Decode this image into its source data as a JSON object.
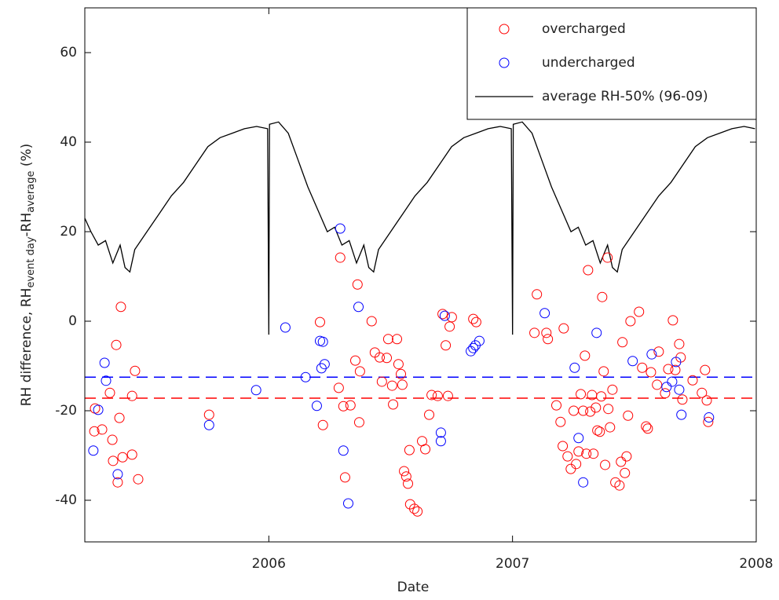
{
  "chart_data": {
    "type": "scatter",
    "x_label": "Date",
    "y_label": [
      "RH difference, RH",
      "event day",
      "-RH",
      "average",
      " (%)"
    ],
    "xlim": [
      2005.245,
      2008
    ],
    "xticks": [
      2006,
      2007,
      2008
    ],
    "ylim": [
      -49.3,
      70
    ],
    "yticks": [
      -40,
      -20,
      0,
      20,
      40,
      60
    ],
    "legend": "upper right",
    "series": [
      {
        "name": "overcharged",
        "color": "#ff0000",
        "style": "marker",
        "x": [
          2005.284,
          2005.287,
          2005.316,
          2005.348,
          2005.361,
          2005.358,
          2005.374,
          2005.38,
          2005.387,
          2005.393,
          2005.4,
          2005.439,
          2005.439,
          2005.451,
          2005.464,
          2005.755,
          2006.21,
          2006.222,
          2006.293,
          2006.287,
          2006.306,
          2006.313,
          2006.335,
          2006.355,
          2006.364,
          2006.371,
          2006.374,
          2006.422,
          2006.435,
          2006.455,
          2006.464,
          2006.484,
          2006.49,
          2006.506,
          2006.51,
          2006.526,
          2006.532,
          2006.542,
          2006.548,
          2006.555,
          2006.564,
          2006.571,
          2006.577,
          2006.58,
          2006.597,
          2006.61,
          2006.629,
          2006.642,
          2006.658,
          2006.668,
          2006.693,
          2006.713,
          2006.726,
          2006.735,
          2006.742,
          2006.751,
          2006.839,
          2006.851,
          2007.1,
          2007.09,
          2007.139,
          2007.145,
          2007.21,
          2007.18,
          2007.197,
          2007.206,
          2007.226,
          2007.239,
          2007.251,
          2007.261,
          2007.271,
          2007.28,
          2007.29,
          2007.297,
          2007.303,
          2007.31,
          2007.319,
          2007.326,
          2007.332,
          2007.342,
          2007.348,
          2007.358,
          2007.364,
          2007.368,
          2007.374,
          2007.38,
          2007.39,
          2007.393,
          2007.4,
          2007.41,
          2007.422,
          2007.439,
          2007.445,
          2007.451,
          2007.461,
          2007.468,
          2007.474,
          2007.484,
          2007.519,
          2007.532,
          2007.548,
          2007.555,
          2007.568,
          2007.593,
          2007.6,
          2007.626,
          2007.639,
          2007.658,
          2007.668,
          2007.684,
          2007.69,
          2007.697,
          2007.739,
          2007.777,
          2007.79,
          2007.797,
          2007.803
        ],
        "values": [
          -24.6,
          -19.5,
          -24.2,
          -16.0,
          -31.2,
          -26.5,
          -5.3,
          -36.0,
          -21.6,
          3.2,
          -30.4,
          -16.7,
          -29.8,
          -11.1,
          -35.3,
          -20.9,
          -0.2,
          -23.2,
          14.2,
          -14.9,
          -19.0,
          -34.9,
          -18.8,
          -8.8,
          8.2,
          -22.6,
          -11.2,
          0.0,
          -7.0,
          -8.1,
          -13.5,
          -8.2,
          -4.0,
          -14.4,
          -18.6,
          -4.0,
          -9.6,
          -11.8,
          -14.2,
          -33.5,
          -34.7,
          -36.3,
          -28.8,
          -40.9,
          -41.9,
          -42.5,
          -26.8,
          -28.6,
          -20.9,
          -16.5,
          -16.7,
          1.6,
          -5.4,
          -16.7,
          -1.2,
          0.9,
          0.5,
          -0.2,
          6.0,
          -2.6,
          -2.6,
          -4.0,
          -1.6,
          -18.8,
          -22.5,
          -27.9,
          -30.2,
          -33.0,
          -20.0,
          -31.9,
          -29.1,
          -16.3,
          -20.0,
          -7.7,
          -29.6,
          11.4,
          -20.2,
          -16.5,
          -29.6,
          -19.3,
          -24.4,
          -24.7,
          -16.8,
          5.4,
          -11.2,
          -32.1,
          14.2,
          -19.6,
          -23.7,
          -15.3,
          -36.0,
          -36.7,
          -31.4,
          -4.7,
          -33.9,
          -30.2,
          -21.1,
          0.0,
          2.1,
          -10.4,
          -23.5,
          -24.0,
          -11.4,
          -14.2,
          -6.8,
          -16.1,
          -10.7,
          0.2,
          -10.9,
          -5.1,
          -8.1,
          -17.5,
          -13.2,
          -16.0,
          -10.9,
          -17.7,
          -22.5
        ]
      },
      {
        "name": "undercharged",
        "color": "#0000ff",
        "style": "marker",
        "x": [
          2005.28,
          2005.3,
          2005.326,
          2005.332,
          2005.38,
          2005.755,
          2005.948,
          2006.068,
          2006.151,
          2006.197,
          2006.21,
          2006.216,
          2006.222,
          2006.229,
          2006.293,
          2006.306,
          2006.326,
          2006.368,
          2006.706,
          2006.706,
          2006.722,
          2006.829,
          2006.839,
          2006.848,
          2006.864,
          2007.132,
          2007.255,
          2007.271,
          2007.29,
          2007.345,
          2007.493,
          2007.571,
          2007.632,
          2007.655,
          2007.671,
          2007.684,
          2007.693,
          2007.806
        ],
        "values": [
          -28.9,
          -19.8,
          -9.3,
          -13.3,
          -34.2,
          -23.2,
          -15.4,
          -1.4,
          -12.5,
          -18.9,
          -4.4,
          -10.5,
          -4.6,
          -9.6,
          20.7,
          -28.9,
          -40.7,
          3.2,
          -24.9,
          -26.8,
          1.2,
          -6.7,
          -6.0,
          -5.4,
          -4.4,
          1.8,
          -10.4,
          -26.1,
          -36.0,
          -2.6,
          -8.9,
          -7.4,
          -14.7,
          -13.5,
          -9.1,
          -15.3,
          -20.9,
          -21.5
        ]
      },
      {
        "name": "average RH-50% (96-09)",
        "color": "#000000",
        "style": "line",
        "x": [
          2005.245,
          2005.27,
          2005.3,
          2005.33,
          2005.36,
          2005.39,
          2005.41,
          2005.43,
          2005.45,
          2005.5,
          2005.55,
          2005.6,
          2005.65,
          2005.7,
          2005.75,
          2005.8,
          2005.85,
          2005.9,
          2005.95,
          2005.995,
          2006.0,
          2006.003,
          2006.04,
          2006.08,
          2006.12,
          2006.16,
          2006.2,
          2006.24,
          2006.27,
          2006.3,
          2006.33,
          2006.36,
          2006.39,
          2006.41,
          2006.43,
          2006.45,
          2006.5,
          2006.55,
          2006.6,
          2006.65,
          2006.7,
          2006.75,
          2006.8,
          2006.85,
          2006.9,
          2006.95,
          2006.995,
          2007.0,
          2007.003,
          2007.04,
          2007.08,
          2007.12,
          2007.16,
          2007.2,
          2007.24,
          2007.27,
          2007.3,
          2007.33,
          2007.36,
          2007.39,
          2007.41,
          2007.43,
          2007.45,
          2007.5,
          2007.55,
          2007.6,
          2007.65,
          2007.7,
          2007.75,
          2007.8,
          2007.85,
          2007.9,
          2007.95,
          2007.995
        ],
        "values": [
          23,
          20,
          17,
          18,
          13,
          17,
          12,
          11,
          16,
          20,
          24,
          28,
          31,
          35,
          39,
          41,
          42,
          43,
          43.5,
          43,
          -3,
          44,
          44.5,
          42,
          36,
          30,
          25,
          20,
          21,
          17,
          18,
          13,
          17,
          12,
          11,
          16,
          20,
          24,
          28,
          31,
          35,
          39,
          41,
          42,
          43,
          43.5,
          43,
          -3,
          44,
          44.5,
          42,
          36,
          30,
          25,
          20,
          21,
          17,
          18,
          13,
          17,
          12,
          11,
          16,
          20,
          24,
          28,
          31,
          35,
          39,
          41,
          42,
          43,
          43.5,
          43
        ]
      }
    ],
    "reference_lines": [
      {
        "color": "#0000ff",
        "value": -12.5
      },
      {
        "color": "#ff0000",
        "value": -17.2
      }
    ]
  }
}
